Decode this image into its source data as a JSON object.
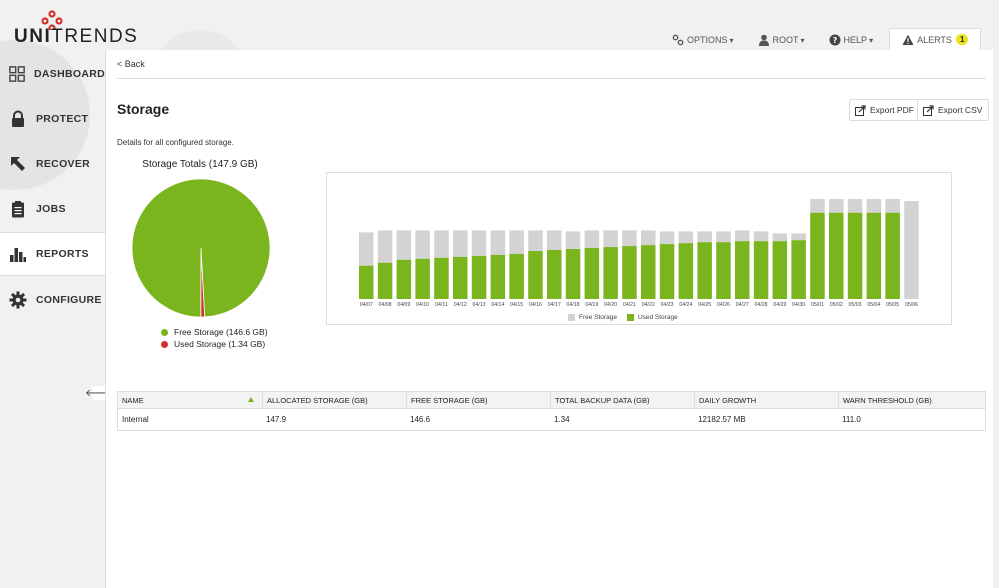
{
  "brand": {
    "name_bold": "UNI",
    "name_light": "TRENDS"
  },
  "topnav": {
    "options": "OPTIONS",
    "root": "ROOT",
    "help": "HELP",
    "alerts": "ALERTS",
    "alerts_count": "1"
  },
  "sidebar": {
    "items": [
      {
        "label": "DASHBOARD",
        "icon": "grid-icon"
      },
      {
        "label": "PROTECT",
        "icon": "lock-icon"
      },
      {
        "label": "RECOVER",
        "icon": "arrow-icon"
      },
      {
        "label": "JOBS",
        "icon": "clipboard-icon"
      },
      {
        "label": "REPORTS",
        "icon": "bar-chart-icon",
        "active": true
      },
      {
        "label": "CONFIGURE",
        "icon": "gear-icon"
      }
    ],
    "collapse_glyph": "🡐"
  },
  "main": {
    "back": "< Back",
    "title": "Storage",
    "export_pdf": "Export PDF",
    "export_csv": "Export CSV",
    "description": "Details for all configured storage."
  },
  "pie": {
    "title": "Storage Totals (147.9 GB)",
    "free_label": "Free Storage (146.6 GB)",
    "used_label": "Used Storage (1.34 GB)"
  },
  "colors": {
    "green": "#7ab51d",
    "gray": "#d3d3d3",
    "red": "#d0302a",
    "accent_yellow": "#e8e31a"
  },
  "chart_data": [
    {
      "type": "pie",
      "title": "Storage Totals (147.9 GB)",
      "series": [
        {
          "name": "Free Storage (146.6 GB)",
          "value": 146.6,
          "color": "#7ab51d"
        },
        {
          "name": "Used Storage (1.34 GB)",
          "value": 1.34,
          "color": "#d0302a"
        }
      ]
    },
    {
      "type": "bar",
      "stacked": true,
      "categories": [
        "04/07",
        "04/08",
        "04/09",
        "04/10",
        "04/11",
        "04/12",
        "04/13",
        "04/14",
        "04/15",
        "04/16",
        "04/17",
        "04/18",
        "04/19",
        "04/20",
        "04/21",
        "04/22",
        "04/23",
        "04/24",
        "04/25",
        "04/26",
        "04/27",
        "04/28",
        "04/29",
        "04/30",
        "05/01",
        "05/02",
        "05/03",
        "05/04",
        "05/05",
        "05/06"
      ],
      "series": [
        {
          "name": "Used Storage",
          "color": "#7ab51d",
          "values": [
            34,
            37,
            40,
            41,
            42,
            43,
            44,
            45,
            46,
            49,
            50,
            51,
            52,
            53,
            54,
            55,
            56,
            57,
            58,
            58,
            59,
            59,
            59,
            60,
            88,
            88,
            88,
            88,
            88,
            0
          ]
        },
        {
          "name": "Free Storage",
          "color": "#d3d3d3",
          "values": [
            34,
            33,
            30,
            29,
            28,
            27,
            26,
            25,
            24,
            21,
            20,
            18,
            18,
            17,
            16,
            15,
            13,
            12,
            11,
            11,
            11,
            10,
            8,
            7,
            14,
            14,
            14,
            14,
            14,
            100
          ]
        }
      ],
      "legend": [
        "Free Storage",
        "Used Storage"
      ],
      "legend_position": "bottom"
    }
  ],
  "table": {
    "columns": [
      "NAME",
      "ALLOCATED STORAGE (GB)",
      "FREE STORAGE (GB)",
      "TOTAL BACKUP DATA (GB)",
      "DAILY GROWTH",
      "WARN THRESHOLD (GB)"
    ],
    "rows": [
      [
        "Internal",
        "147.9",
        "146.6",
        "1.34",
        "12182.57 MB",
        "111.0"
      ]
    ]
  }
}
